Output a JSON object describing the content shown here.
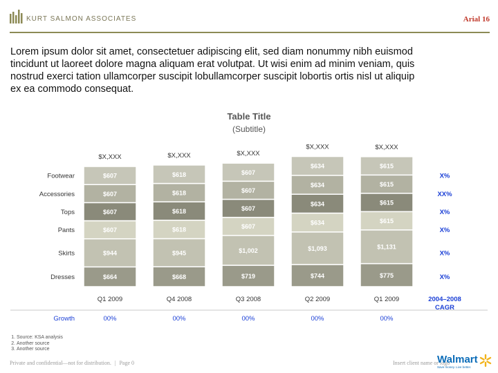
{
  "header": {
    "brand": "KURT SALMON ASSOCIATES",
    "font_note": "Arial 16",
    "accent_color": "#8c8a55"
  },
  "intro_text": "Lorem ipsum dolor sit amet, consectetuer adipiscing elit, sed diam nonummy nibh euismod tincidunt ut laoreet dolore magna aliquam erat volutpat. Ut wisi enim ad minim veniam, quis nostrud exerci tation ullamcorper suscipit lobullamcorper suscipit lobortis ortis nisl ut aliquip ex ea commodo consequat.",
  "chart_data": {
    "type": "bar",
    "stacked": true,
    "title": "Table Title",
    "subtitle": "(Subtitle)",
    "categories": [
      "Q1 2009",
      "Q4 2008",
      "Q3 2008",
      "Q2 2009",
      "Q1 2009"
    ],
    "totals": [
      "$X,XXX",
      "$X,XXX",
      "$X,XXX",
      "$X,XXX",
      "$X,XXX"
    ],
    "series": [
      {
        "name": "Dresses",
        "color": "#9a9a8a",
        "values": [
          664,
          668,
          719,
          744,
          775
        ],
        "labels": [
          "$664",
          "$668",
          "$719",
          "$744",
          "$775"
        ]
      },
      {
        "name": "Skirts",
        "color": "#c2c2b2",
        "values": [
          944,
          945,
          1002,
          1093,
          1131
        ],
        "labels": [
          "$944",
          "$945",
          "$1,002",
          "$1,093",
          "$1,131"
        ]
      },
      {
        "name": "Pants",
        "color": "#d4d4c2",
        "values": [
          607,
          618,
          607,
          634,
          615
        ],
        "labels": [
          "$607",
          "$618",
          "$607",
          "$634",
          "$615"
        ]
      },
      {
        "name": "Tops",
        "color": "#8a8a7a",
        "values": [
          607,
          618,
          607,
          634,
          615
        ],
        "labels": [
          "$607",
          "$618",
          "$607",
          "$634",
          "$615"
        ]
      },
      {
        "name": "Accessories",
        "color": "#b2b2a2",
        "values": [
          607,
          618,
          607,
          634,
          615
        ],
        "labels": [
          "$607",
          "$618",
          "$607",
          "$634",
          "$615"
        ]
      },
      {
        "name": "Footwear",
        "color": "#c6c6b8",
        "values": [
          607,
          618,
          607,
          634,
          615
        ],
        "labels": [
          "$607",
          "$618",
          "$607",
          "$634",
          "$615"
        ]
      }
    ],
    "cagr": {
      "header": [
        "2004–2008",
        "CAGR"
      ],
      "values": {
        "Footwear": "X%",
        "Accessories": "XX%",
        "Tops": "X%",
        "Pants": "X%",
        "Skirts": "X%",
        "Dresses": "X%"
      }
    },
    "growth": {
      "label": "Growth",
      "values": [
        "00%",
        "00%",
        "00%",
        "00%",
        "00%"
      ]
    },
    "accent_color": "#1a3fd6"
  },
  "footnotes": [
    "Source: KSA analysis",
    "Another source",
    "Another source"
  ],
  "footer": {
    "left": "Private and confidential—not for distribution.",
    "separator": "|",
    "page": "Page 0",
    "right": "Insert client name or logo",
    "walmart": "Walmart",
    "walmart_tag": "Save money. Live better."
  }
}
